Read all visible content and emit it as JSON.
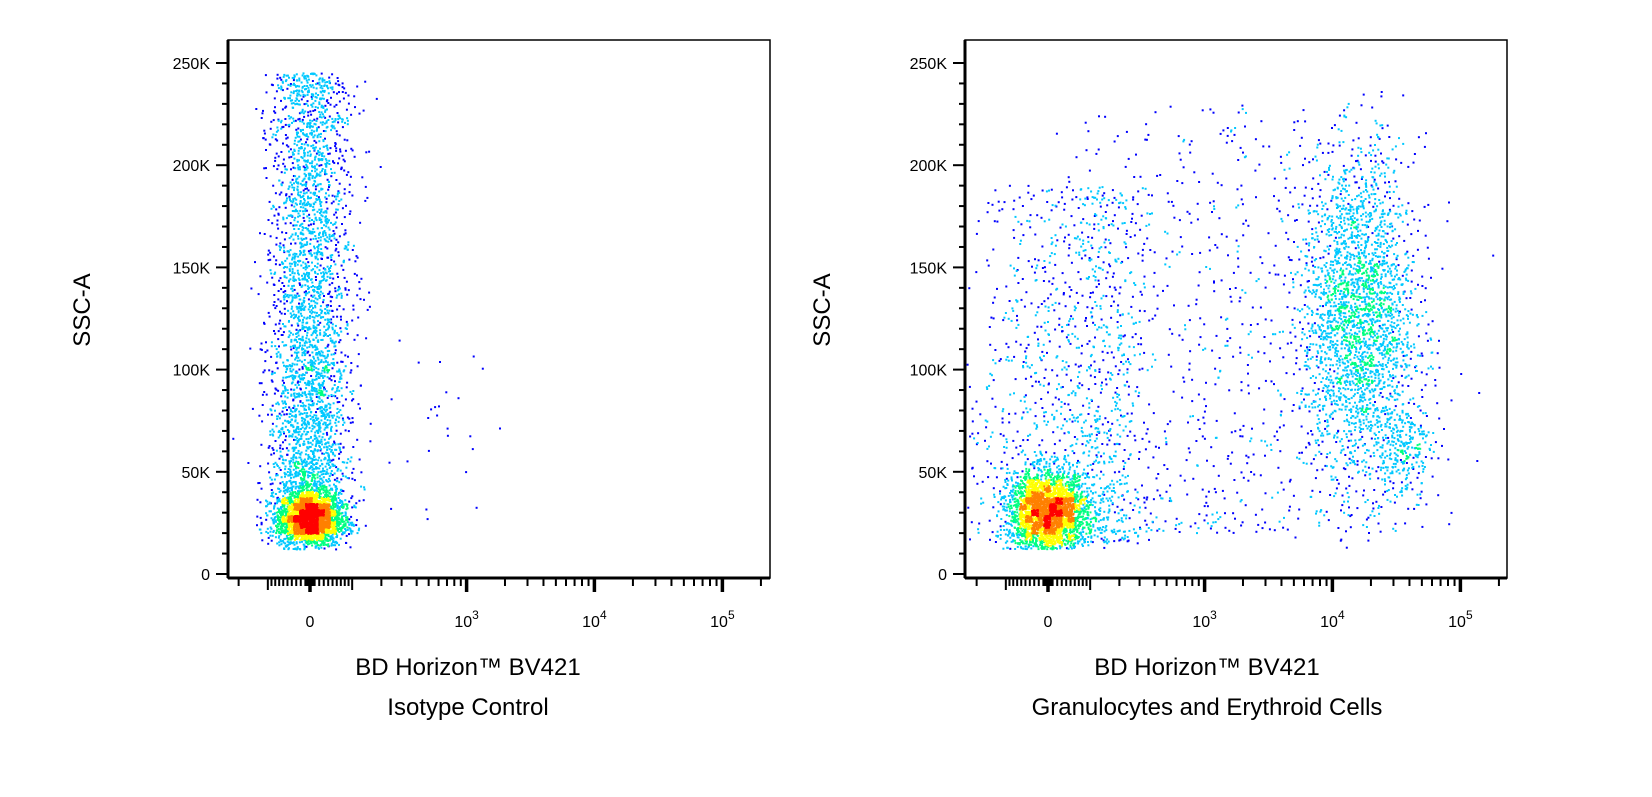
{
  "chart_data": [
    {
      "type": "scatter",
      "subtype": "flow-cytometry pseudocolor density plot",
      "xlabel": [
        "BD Horizon™ BV421",
        "Isotype Control"
      ],
      "ylabel": "SSC-A",
      "x_scale": "biexponential",
      "y_scale": "linear",
      "ylim": [
        0,
        262144
      ],
      "xlim": [
        -300,
        262144
      ],
      "x_ticks": [
        {
          "value": 0,
          "label": "0"
        },
        {
          "value": 1000,
          "label": "10",
          "exp": "3"
        },
        {
          "value": 10000,
          "label": "10",
          "exp": "4"
        },
        {
          "value": 100000,
          "label": "10",
          "exp": "5"
        }
      ],
      "y_ticks": [
        {
          "value": 0,
          "label": "0"
        },
        {
          "value": 50000,
          "label": "50K"
        },
        {
          "value": 100000,
          "label": "100K"
        },
        {
          "value": 150000,
          "label": "150K"
        },
        {
          "value": 200000,
          "label": "200K"
        },
        {
          "value": 250000,
          "label": "250K"
        }
      ],
      "color_scale": [
        "#0000ff",
        "#00c8ff",
        "#00ff80",
        "#ffff00",
        "#ff8000",
        "#ff0000"
      ],
      "populations": [
        {
          "x_center": 0,
          "x_spread": 35,
          "y_center": 27000,
          "y_spread": 7000,
          "count": 2600
        },
        {
          "x_center": 0,
          "x_spread": 50,
          "y_min": 20000,
          "y_max": 245000,
          "count": 3600
        },
        {
          "x_center": 150,
          "x_spread": 800,
          "y_min": 25000,
          "y_max": 120000,
          "count": 40
        }
      ]
    },
    {
      "type": "scatter",
      "subtype": "flow-cytometry pseudocolor density plot",
      "xlabel": [
        "BD Horizon™ BV421",
        "Granulocytes and Erythroid Cells"
      ],
      "ylabel": "SSC-A",
      "x_scale": "biexponential",
      "y_scale": "linear",
      "ylim": [
        0,
        262144
      ],
      "xlim": [
        -300,
        262144
      ],
      "x_ticks": [
        {
          "value": 0,
          "label": "0"
        },
        {
          "value": 1000,
          "label": "10",
          "exp": "3"
        },
        {
          "value": 10000,
          "label": "10",
          "exp": "4"
        },
        {
          "value": 100000,
          "label": "10",
          "exp": "5"
        }
      ],
      "y_ticks": [
        {
          "value": 0,
          "label": "0"
        },
        {
          "value": 50000,
          "label": "50K"
        },
        {
          "value": 100000,
          "label": "100K"
        },
        {
          "value": 150000,
          "label": "150K"
        },
        {
          "value": 200000,
          "label": "200K"
        },
        {
          "value": 250000,
          "label": "250K"
        }
      ],
      "color_scale": [
        "#0000ff",
        "#00c8ff",
        "#00ff80",
        "#ffff00",
        "#ff8000",
        "#ff0000"
      ],
      "populations": [
        {
          "x_center": 0,
          "x_spread": 45,
          "y_center": 30000,
          "y_spread": 10000,
          "count": 2800
        },
        {
          "x_center": 60,
          "x_spread": 120,
          "y_min": 15000,
          "y_max": 190000,
          "count": 1200
        },
        {
          "x_center": 16000,
          "x_spread_log": 0.22,
          "y_center": 125000,
          "y_spread": 40000,
          "count": 2600
        },
        {
          "x_center": 35000,
          "x_spread_log": 0.12,
          "y_center": 60000,
          "y_spread": 12000,
          "count": 250
        },
        {
          "x_center": 1500,
          "x_spread_log": 0.7,
          "y_min": 20000,
          "y_max": 230000,
          "count": 700
        }
      ]
    }
  ]
}
